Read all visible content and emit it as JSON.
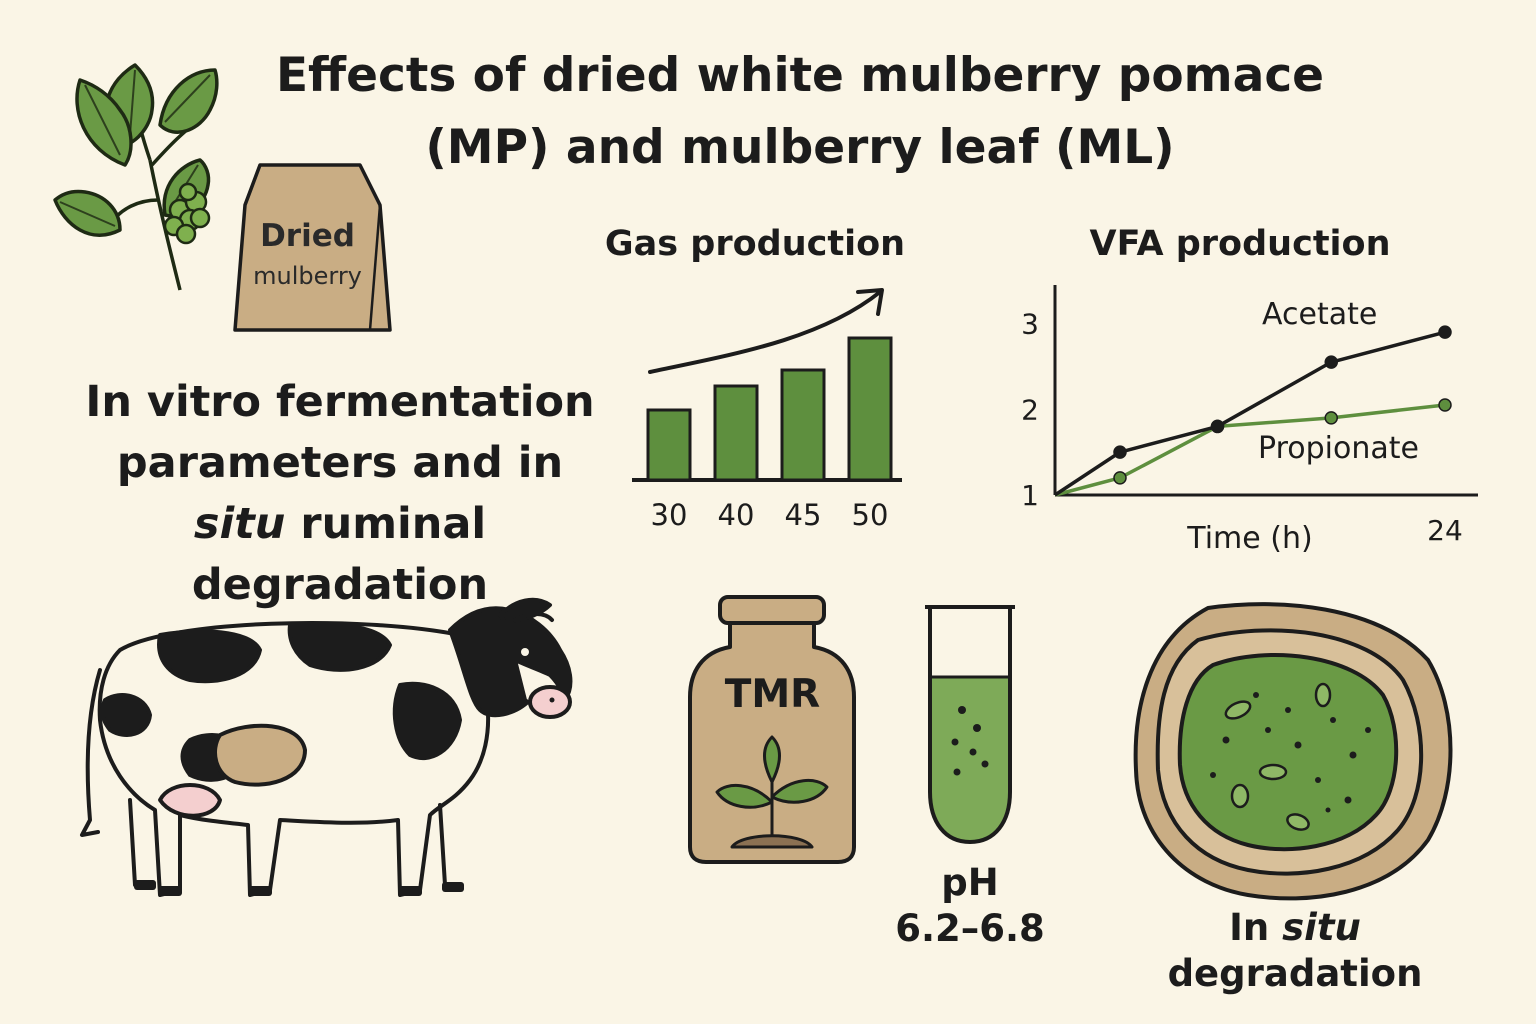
{
  "title": {
    "line1": "Effects of dried white mulberry pomace",
    "line2": "(MP) and mulberry leaf (ML)"
  },
  "bag": {
    "line1": "Dried",
    "line2": "mulberry"
  },
  "subhead": {
    "line1": "In vitro fermentation",
    "line2": "parameters and in",
    "line3_italic": "situ",
    "line3_rest": " ruminal degradation"
  },
  "tmr_label": "TMR",
  "ph": {
    "label": "pH",
    "range": "6.2–6.8"
  },
  "in_situ": {
    "prefix": "In ",
    "italic": "situ",
    "line2": "degradation"
  },
  "colors": {
    "background": "#faf5e6",
    "green": "#5e8f3e",
    "green_light": "#7eaa58",
    "tan": "#c9ad84",
    "dark": "#1c1c1c"
  },
  "chart_data": [
    {
      "type": "bar",
      "title": "Gas production",
      "categories": [
        "30",
        "40",
        "45",
        "50"
      ],
      "values": [
        35,
        47,
        55,
        71
      ],
      "ylim": [
        0,
        80
      ],
      "trend_arrow": "increasing"
    },
    {
      "type": "line",
      "title": "VFA production",
      "xlabel": "Time (h)",
      "x_tick_labels": [
        "24"
      ],
      "y_ticks": [
        1,
        2,
        3
      ],
      "xlim": [
        0,
        24
      ],
      "ylim": [
        1,
        3.45
      ],
      "series": [
        {
          "name": "Acetate",
          "x": [
            0,
            4,
            10,
            17,
            24
          ],
          "y": [
            1,
            1.5,
            1.8,
            2.55,
            2.9
          ],
          "color": "#1c1c1c"
        },
        {
          "name": "Propionate",
          "x": [
            0,
            4,
            10,
            17,
            24
          ],
          "y": [
            1,
            1.2,
            1.8,
            1.9,
            2.05
          ],
          "color": "#5e8f3e"
        }
      ]
    }
  ]
}
